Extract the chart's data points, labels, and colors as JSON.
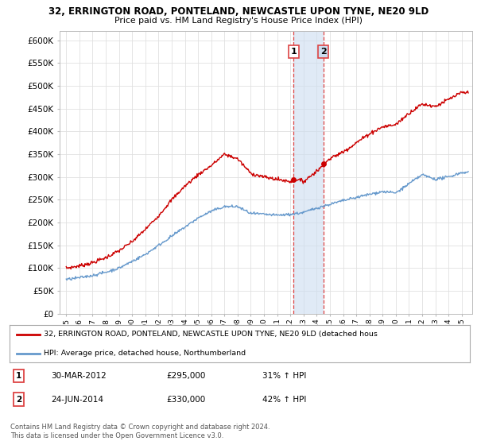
{
  "title_line1": "32, ERRINGTON ROAD, PONTELAND, NEWCASTLE UPON TYNE, NE20 9LD",
  "title_line2": "Price paid vs. HM Land Registry's House Price Index (HPI)",
  "ylabel_ticks": [
    "£0",
    "£50K",
    "£100K",
    "£150K",
    "£200K",
    "£250K",
    "£300K",
    "£350K",
    "£400K",
    "£450K",
    "£500K",
    "£550K",
    "£600K"
  ],
  "ytick_values": [
    0,
    50000,
    100000,
    150000,
    200000,
    250000,
    300000,
    350000,
    400000,
    450000,
    500000,
    550000,
    600000
  ],
  "ylim": [
    0,
    620000
  ],
  "xlim_start": 1994.5,
  "xlim_end": 2025.8,
  "sale1_x": 2012.25,
  "sale1_y": 295000,
  "sale2_x": 2014.5,
  "sale2_y": 330000,
  "shade_color": "#ccddf0",
  "dashed_line_color": "#dd4444",
  "red_line_color": "#cc0000",
  "blue_line_color": "#6699cc",
  "legend_label_red": "32, ERRINGTON ROAD, PONTELAND, NEWCASTLE UPON TYNE, NE20 9LD (detached hous",
  "legend_label_blue": "HPI: Average price, detached house, Northumberland",
  "sale1_date": "30-MAR-2012",
  "sale1_price": "£295,000",
  "sale1_hpi": "31% ↑ HPI",
  "sale2_date": "24-JUN-2014",
  "sale2_price": "£330,000",
  "sale2_hpi": "42% ↑ HPI",
  "footer": "Contains HM Land Registry data © Crown copyright and database right 2024.\nThis data is licensed under the Open Government Licence v3.0.",
  "background_color": "#ffffff",
  "grid_color": "#e0e0e0"
}
